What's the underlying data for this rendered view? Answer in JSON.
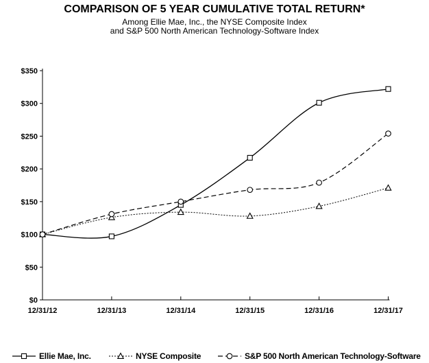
{
  "header": {
    "title": "COMPARISON OF 5 YEAR CUMULATIVE TOTAL RETURN*",
    "subtitle_line1": "Among Ellie Mae, Inc., the NYSE Composite Index",
    "subtitle_line2": "and S&P 500 North American Technology-Software Index"
  },
  "chart_data": {
    "type": "line",
    "title": "COMPARISON OF 5 YEAR CUMULATIVE TOTAL RETURN*",
    "categories": [
      "12/31/12",
      "12/31/13",
      "12/31/14",
      "12/31/15",
      "12/31/16",
      "12/31/17"
    ],
    "series": [
      {
        "name": "Ellie Mae, Inc.",
        "marker": "square",
        "line_style": "solid",
        "values": [
          100,
          97,
          145,
          217,
          301,
          322
        ]
      },
      {
        "name": "NYSE Composite",
        "marker": "triangle",
        "line_style": "dotted",
        "values": [
          100,
          126,
          134,
          128,
          143,
          171
        ]
      },
      {
        "name": "S&P 500 North American Technology-Software",
        "marker": "circle",
        "line_style": "dashed",
        "values": [
          100,
          131,
          150,
          168,
          179,
          254
        ]
      }
    ],
    "xlabel": "",
    "ylabel": "",
    "ylim": [
      0,
      350
    ],
    "ytick_step": 50,
    "ytick_labels": [
      "$0",
      "$50",
      "$100",
      "$150",
      "$200",
      "$250",
      "$300",
      "$350"
    ],
    "grid": false,
    "legend_position": "bottom",
    "line_color": "#000000",
    "marker_fill": "#ffffff",
    "background": "#ffffff"
  }
}
